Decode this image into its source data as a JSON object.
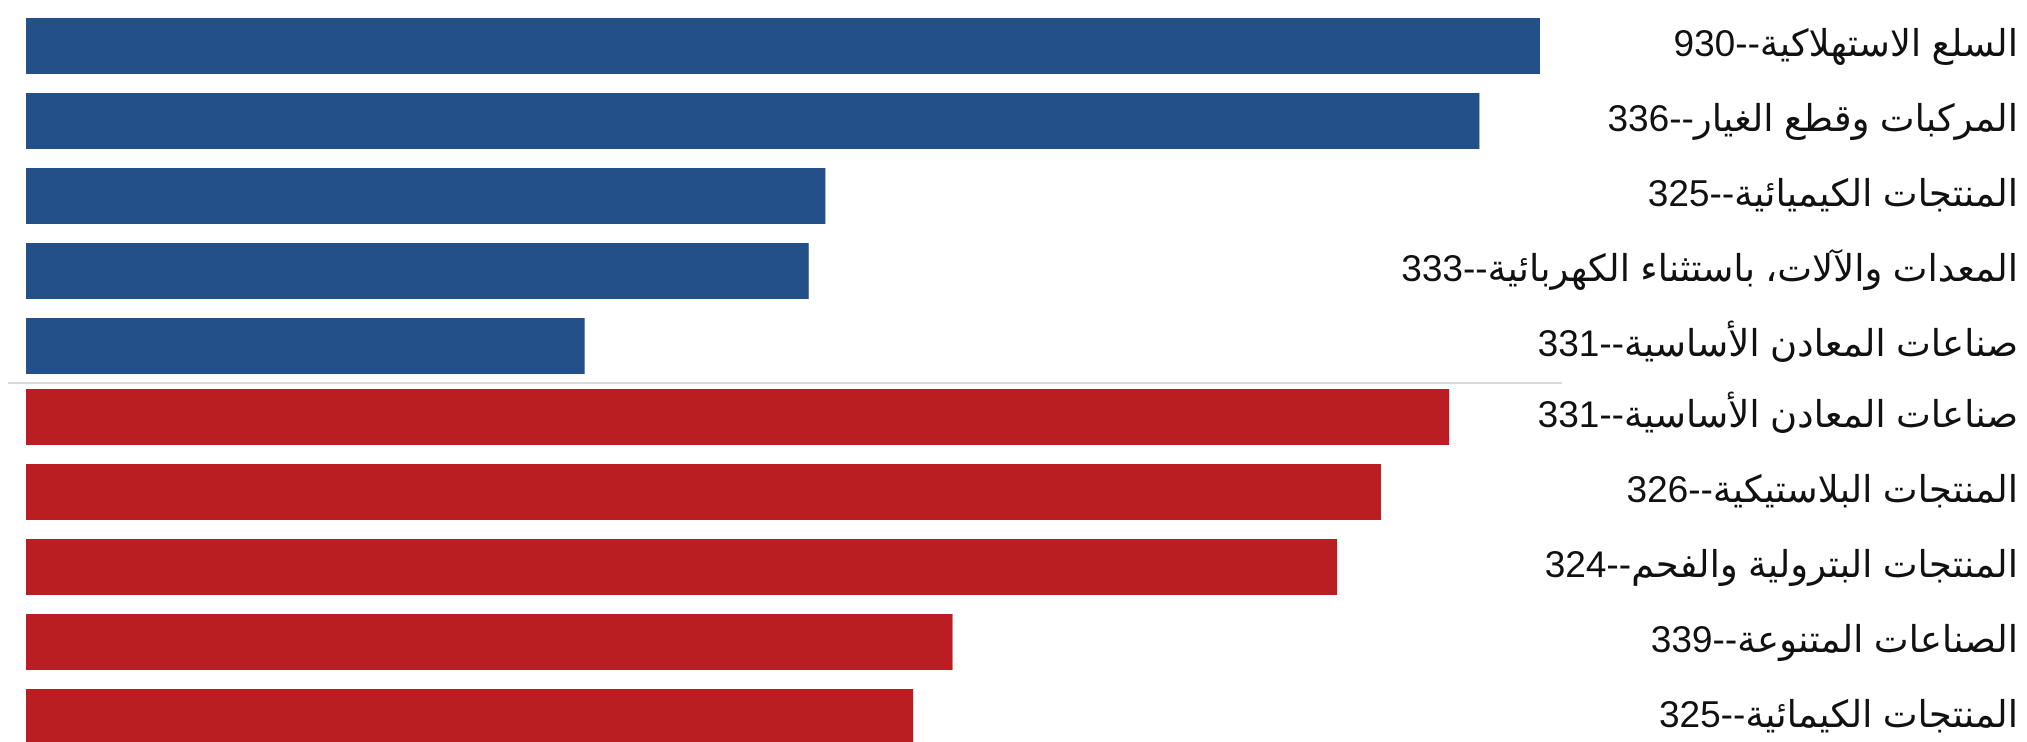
{
  "chart_data": {
    "type": "bar",
    "orientation": "horizontal",
    "title": "",
    "xlabel": "",
    "ylabel": "",
    "axis_tick_labels": false,
    "grid": false,
    "legend": "none",
    "xlim": [
      0,
      100
    ],
    "groups": [
      {
        "color": "#24508a",
        "bars": [
          {
            "label": "930--السلع الاستهلاكية",
            "value": 100
          },
          {
            "label": "336--المركبات وقطع الغيار",
            "value": 96
          },
          {
            "label": "325--المنتجات الكيميائية",
            "value": 52.8
          },
          {
            "label": "333--المعدات والآلات، باستثناء الكهربائية",
            "value": 51.7
          },
          {
            "label": "331--صناعات المعادن الأساسية",
            "value": 36.9
          }
        ]
      },
      {
        "color": "#bb1e22",
        "bars": [
          {
            "label": "331--صناعات المعادن الأساسية",
            "value": 94
          },
          {
            "label": "326--المنتجات البلاستيكية",
            "value": 89.5
          },
          {
            "label": "324--المنتجات البترولية والفحم",
            "value": 86.6
          },
          {
            "label": "339--الصناعات المتنوعة",
            "value": 61.2
          },
          {
            "label": "325--المنتجات الكيمائية",
            "value": 58.6
          }
        ]
      }
    ]
  }
}
